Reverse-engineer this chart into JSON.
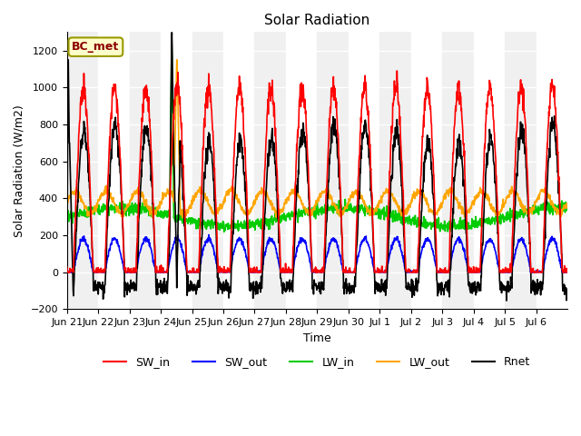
{
  "title": "Solar Radiation",
  "xlabel": "Time",
  "ylabel": "Solar Radiation (W/m2)",
  "ylim": [
    -200,
    1300
  ],
  "yticks": [
    -200,
    0,
    200,
    400,
    600,
    800,
    1000,
    1200
  ],
  "annotation": "BC_met",
  "annotation_color": "#8B0000",
  "annotation_bg": "#FFFFCC",
  "colors": {
    "SW_in": "#FF0000",
    "SW_out": "#0000FF",
    "LW_in": "#00CC00",
    "LW_out": "#FFA500",
    "Rnet": "#000000"
  },
  "background_alternating": [
    "#F0F0F0",
    "#FFFFFF"
  ],
  "tick_labels": [
    "Jun 21",
    "Jun 22",
    "Jun 23",
    "Jun 24",
    "Jun 25",
    "Jun 26",
    "Jun 27",
    "Jun 28",
    "Jun 29",
    "Jun 30",
    "Jul 1",
    "Jul 2",
    "Jul 3",
    "Jul 4",
    "Jul 5",
    "Jul 6"
  ],
  "lw": 1.2
}
